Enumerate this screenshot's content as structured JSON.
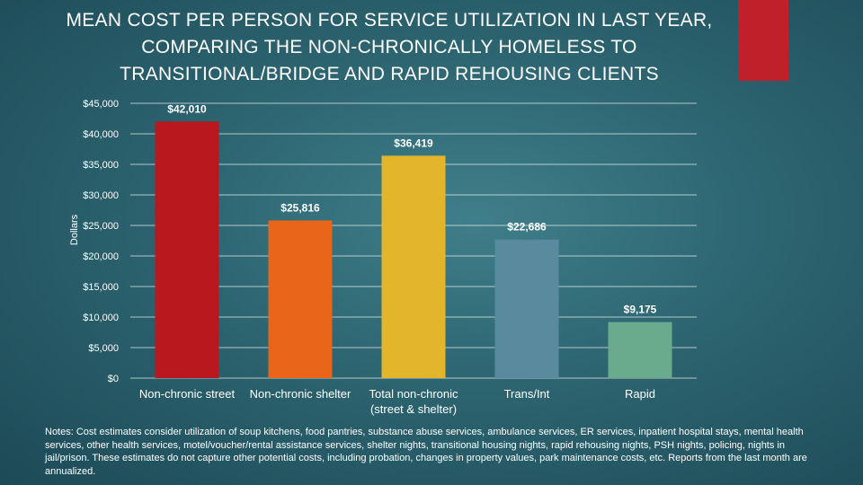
{
  "title_lines": [
    "MEAN COST PER PERSON FOR SERVICE UTILIZATION IN LAST YEAR,",
    "COMPARING THE NON-CHRONICALLY HOMELESS TO",
    "TRANSITIONAL/BRIDGE AND RAPID REHOUSING CLIENTS"
  ],
  "notes": "Notes: Cost estimates consider utilization of soup kitchens, food pantries, substance abuse services, ambulance services, ER services, inpatient hospital stays, mental health services, other health services, motel/voucher/rental assistance services, shelter nights, transitional housing nights, rapid rehousing nights, PSH nights, policing, nights in jail/prison. These estimates do not capture other potential costs, including probation, changes in property values, park maintenance costs, etc. Reports from the last month are annualized.",
  "colors": {
    "accent": "#c0202a",
    "text": "#ffffff",
    "gridline": "#ffffff"
  },
  "chart_data": {
    "type": "bar",
    "title": "MEAN COST PER PERSON FOR SERVICE UTILIZATION IN LAST YEAR, COMPARING THE NON-CHRONICALLY HOMELESS TO TRANSITIONAL/BRIDGE AND RAPID REHOUSING CLIENTS",
    "xlabel": "",
    "ylabel": "Dollars",
    "ylim": [
      0,
      45000
    ],
    "yticks": [
      0,
      5000,
      10000,
      15000,
      20000,
      25000,
      30000,
      35000,
      40000,
      45000
    ],
    "ytick_labels": [
      "$0",
      "$5,000",
      "$10,000",
      "$15,000",
      "$20,000",
      "$25,000",
      "$30,000",
      "$35,000",
      "$40,000",
      "$45,000"
    ],
    "grid": true,
    "categories": [
      [
        "Non-chronic street"
      ],
      [
        "Non-chronic shelter"
      ],
      [
        "Total non-chronic",
        "(street & shelter)"
      ],
      [
        "Trans/Int"
      ],
      [
        "Rapid"
      ]
    ],
    "values": [
      42010,
      25816,
      36419,
      22686,
      9175
    ],
    "value_labels": [
      "$42,010",
      "$25,816",
      "$36,419",
      "$22,686",
      "$9,175"
    ],
    "bar_colors": [
      "#b8181e",
      "#e8651a",
      "#e3b52a",
      "#5a8a9e",
      "#6aab8e"
    ]
  }
}
